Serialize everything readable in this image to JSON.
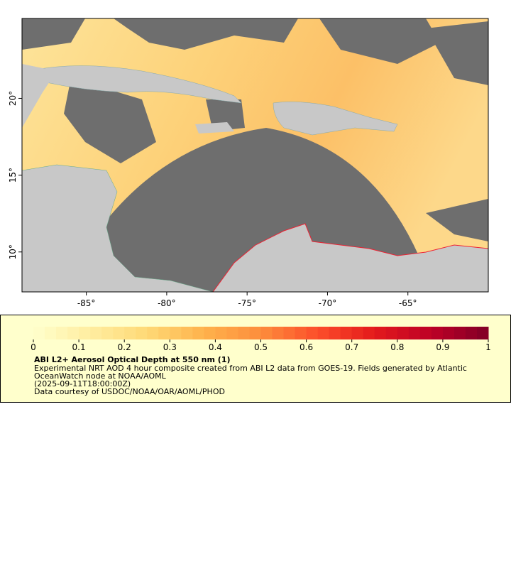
{
  "map": {
    "xlim": [
      -89,
      -60
    ],
    "ylim": [
      7.4,
      25.2
    ],
    "xticks": [
      {
        "value": -85,
        "label": "-85°"
      },
      {
        "value": -80,
        "label": "-80°"
      },
      {
        "value": -75,
        "label": "-75°"
      },
      {
        "value": -70,
        "label": "-70°"
      },
      {
        "value": -65,
        "label": "-65°"
      }
    ],
    "yticks": [
      {
        "value": 10,
        "label": "10°"
      },
      {
        "value": 15,
        "label": "15°"
      },
      {
        "value": 20,
        "label": "20°"
      }
    ]
  },
  "legend": {
    "range": [
      0,
      1
    ],
    "ticks": [
      0,
      0.1,
      0.2,
      0.3,
      0.4,
      0.5,
      0.6,
      0.7,
      0.8,
      0.9,
      1
    ],
    "colors": [
      "#ffffcc",
      "#ffeda0",
      "#fed976",
      "#feb24c",
      "#fd8d3c",
      "#fc4e2a",
      "#e31a1c",
      "#bd0026",
      "#800026"
    ],
    "title": "ABI L2+ Aerosol Optical Depth at 550 nm (1)",
    "description": [
      "Experimental NRT AOD 4 hour composite created from ABI L2 data from GOES-19. Fields generated by Atlantic",
      "OceanWatch node at NOAA/AOML"
    ],
    "timestamp": "(2025-09-11T18:00:00Z)",
    "credit": "Data courtesy of USDOC/NOAA/OAR/AOML/PHOD"
  }
}
